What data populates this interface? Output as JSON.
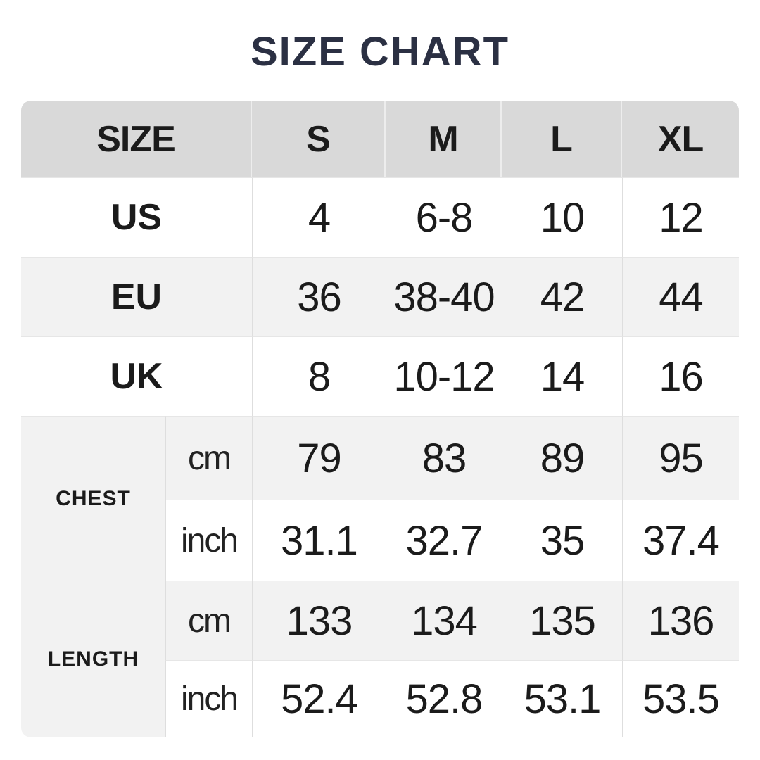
{
  "title": "SIZE CHART",
  "colors": {
    "title_text": "#2b3043",
    "header_bg": "#d9d9d9",
    "row_alt_bg": "#f2f2f2",
    "row_bg": "#ffffff",
    "cell_text": "#1b1b1b",
    "divider": "#dedede"
  },
  "table": {
    "header": {
      "size_label": "SIZE",
      "columns": [
        "S",
        "M",
        "L",
        "XL"
      ]
    },
    "conversion_rows": [
      {
        "label": "US",
        "values": [
          "4",
          "6-8",
          "10",
          "12"
        ]
      },
      {
        "label": "EU",
        "values": [
          "36",
          "38-40",
          "42",
          "44"
        ]
      },
      {
        "label": "UK",
        "values": [
          "8",
          "10-12",
          "14",
          "16"
        ]
      }
    ],
    "measurement_sections": [
      {
        "label": "CHEST",
        "rows": [
          {
            "unit": "cm",
            "values": [
              "79",
              "83",
              "89",
              "95"
            ]
          },
          {
            "unit": "inch",
            "values": [
              "31.1",
              "32.7",
              "35",
              "37.4"
            ]
          }
        ]
      },
      {
        "label": "LENGTH",
        "rows": [
          {
            "unit": "cm",
            "values": [
              "133",
              "134",
              "135",
              "136"
            ]
          },
          {
            "unit": "inch",
            "values": [
              "52.4",
              "52.8",
              "53.1",
              "53.5"
            ]
          }
        ]
      }
    ]
  },
  "chart_data": {
    "type": "table",
    "title": "SIZE CHART",
    "columns": [
      "SIZE",
      "",
      "S",
      "M",
      "L",
      "XL"
    ],
    "rows": [
      [
        "US",
        "",
        "4",
        "6-8",
        "10",
        "12"
      ],
      [
        "EU",
        "",
        "36",
        "38-40",
        "42",
        "44"
      ],
      [
        "UK",
        "",
        "8",
        "10-12",
        "14",
        "16"
      ],
      [
        "CHEST",
        "cm",
        "79",
        "83",
        "89",
        "95"
      ],
      [
        "CHEST",
        "inch",
        "31.1",
        "32.7",
        "35",
        "37.4"
      ],
      [
        "LENGTH",
        "cm",
        "133",
        "134",
        "135",
        "136"
      ],
      [
        "LENGTH",
        "inch",
        "52.4",
        "52.8",
        "53.1",
        "53.5"
      ]
    ]
  }
}
